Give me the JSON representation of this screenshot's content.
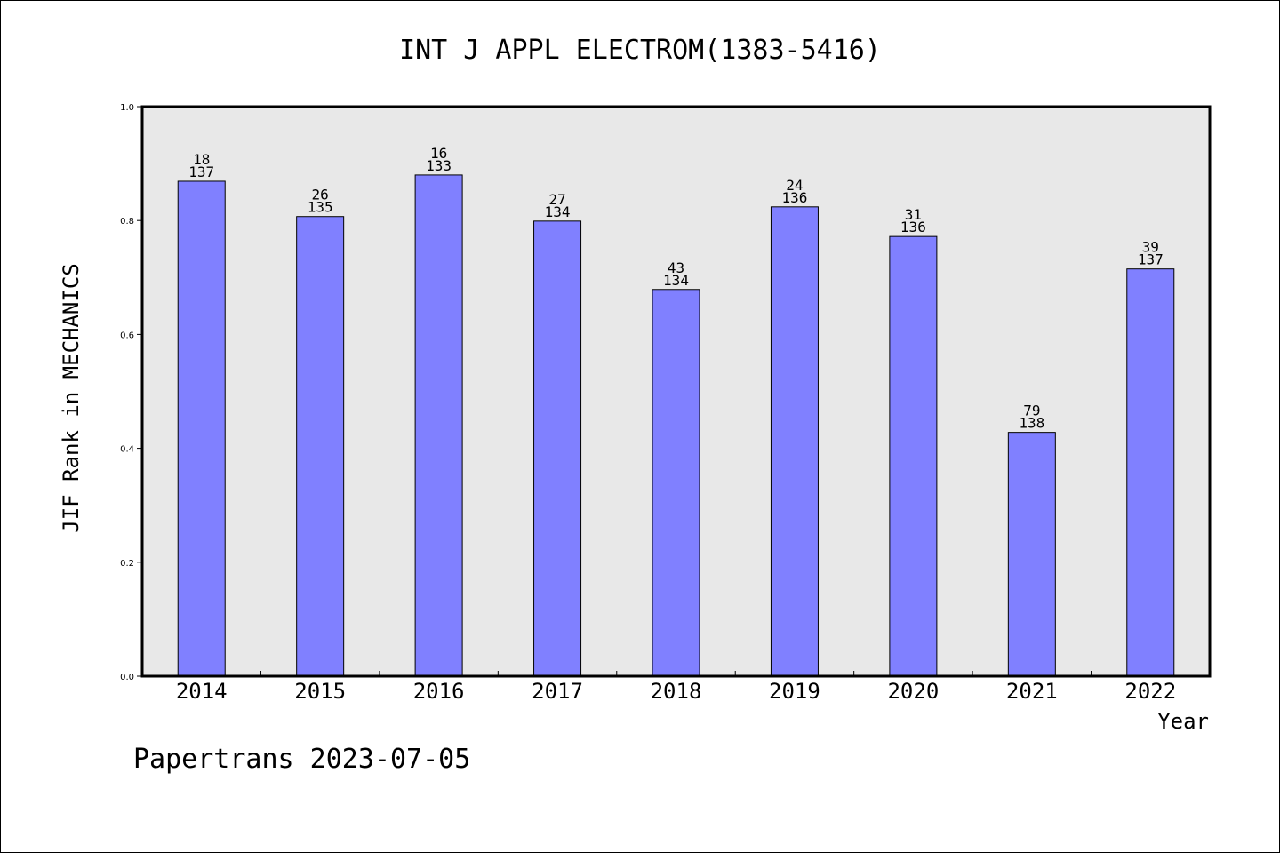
{
  "chart_data": {
    "type": "bar",
    "title": "INT J APPL ELECTROM(1383-5416)",
    "ylabel": "JIF Rank in MECHANICS",
    "xlabel": "Year",
    "ylim": [
      0,
      1
    ],
    "yticks": [
      "0.0",
      "0.2",
      "0.4",
      "0.6",
      "0.8",
      "1.0"
    ],
    "categories": [
      "2014",
      "2015",
      "2016",
      "2017",
      "2018",
      "2019",
      "2020",
      "2021",
      "2022"
    ],
    "values": [
      0.869,
      0.807,
      0.88,
      0.799,
      0.679,
      0.824,
      0.772,
      0.428,
      0.715
    ],
    "rank": [
      "18",
      "26",
      "16",
      "27",
      "43",
      "24",
      "31",
      "79",
      "39"
    ],
    "total": [
      "137",
      "135",
      "133",
      "134",
      "134",
      "136",
      "136",
      "138",
      "137"
    ],
    "bar_color": "#8080ff",
    "plot_background": "#e8e8e8",
    "grid": false
  },
  "footer": "Papertrans 2023-07-05"
}
